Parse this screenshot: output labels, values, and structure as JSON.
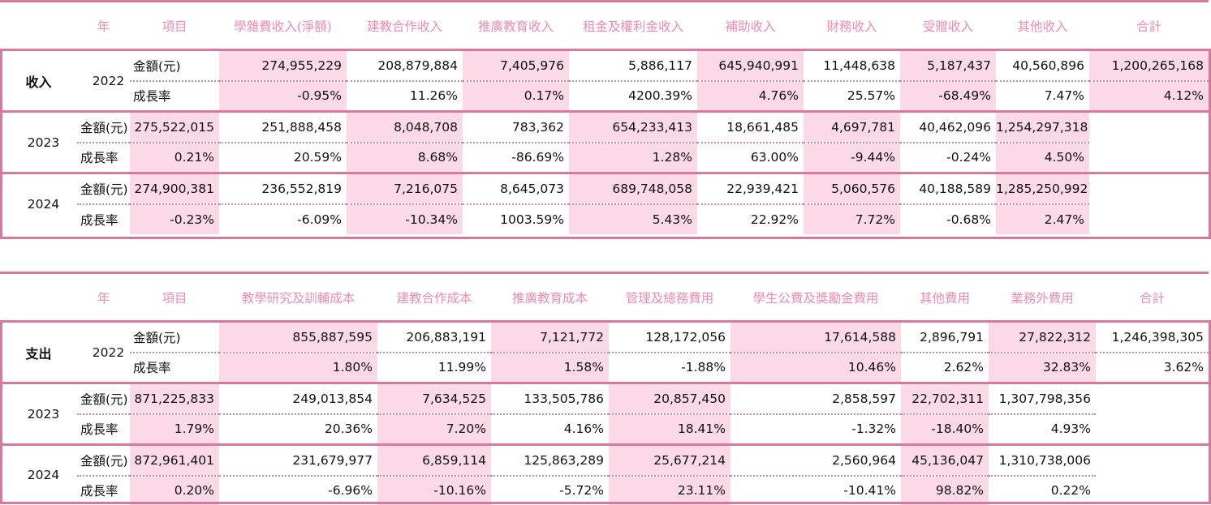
{
  "chart_data": [
    {
      "type": "table",
      "section": "收入",
      "headers": [
        "年",
        "項目",
        "學雜費收入(淨額)",
        "建教合作收入",
        "推廣教育收入",
        "租金及權利金收入",
        "補助收入",
        "財務收入",
        "受贈收入",
        "其他收入",
        "合計"
      ],
      "rows": [
        {
          "year": "2022",
          "amount_label": "金額(元)",
          "amounts": [
            "274,955,229",
            "208,879,884",
            "7,405,976",
            "5,886,117",
            "645,940,991",
            "11,448,638",
            "5,187,437",
            "40,560,896",
            "1,200,265,168"
          ],
          "growth_label": "成長率",
          "growth": [
            "-0.95%",
            "11.26%",
            "0.17%",
            "4200.39%",
            "4.76%",
            "25.57%",
            "-68.49%",
            "7.47%",
            "4.12%"
          ]
        },
        {
          "year": "2023",
          "amount_label": "金額(元)",
          "amounts": [
            "275,522,015",
            "251,888,458",
            "8,048,708",
            "783,362",
            "654,233,413",
            "18,661,485",
            "4,697,781",
            "40,462,096",
            "1,254,297,318"
          ],
          "growth_label": "成長率",
          "growth": [
            "0.21%",
            "20.59%",
            "8.68%",
            "-86.69%",
            "1.28%",
            "63.00%",
            "-9.44%",
            "-0.24%",
            "4.50%"
          ]
        },
        {
          "year": "2024",
          "amount_label": "金額(元)",
          "amounts": [
            "274,900,381",
            "236,552,819",
            "7,216,075",
            "8,645,073",
            "689,748,058",
            "22,939,421",
            "5,060,576",
            "40,188,589",
            "1,285,250,992"
          ],
          "growth_label": "成長率",
          "growth": [
            "-0.23%",
            "-6.09%",
            "-10.34%",
            "1003.59%",
            "5.43%",
            "22.92%",
            "7.72%",
            "-0.68%",
            "2.47%"
          ]
        }
      ]
    },
    {
      "type": "table",
      "section": "支出",
      "headers": [
        "年",
        "項目",
        "教學研究及訓輔成本",
        "建教合作成本",
        "推廣教育成本",
        "管理及總務費用",
        "學生公費及獎勵金費用",
        "其他費用",
        "業務外費用",
        "合計"
      ],
      "rows": [
        {
          "year": "2022",
          "amount_label": "金額(元)",
          "amounts": [
            "855,887,595",
            "206,883,191",
            "7,121,772",
            "128,172,056",
            "17,614,588",
            "2,896,791",
            "27,822,312",
            "1,246,398,305"
          ],
          "growth_label": "成長率",
          "growth": [
            "1.80%",
            "11.99%",
            "1.58%",
            "-1.88%",
            "10.46%",
            "2.62%",
            "32.83%",
            "3.62%"
          ]
        },
        {
          "year": "2023",
          "amount_label": "金額(元)",
          "amounts": [
            "871,225,833",
            "249,013,854",
            "7,634,525",
            "133,505,786",
            "20,857,450",
            "2,858,597",
            "22,702,311",
            "1,307,798,356"
          ],
          "growth_label": "成長率",
          "growth": [
            "1.79%",
            "20.36%",
            "7.20%",
            "4.16%",
            "18.41%",
            "-1.32%",
            "-18.40%",
            "4.93%"
          ]
        },
        {
          "year": "2024",
          "amount_label": "金額(元)",
          "amounts": [
            "872,961,401",
            "231,679,977",
            "6,859,114",
            "125,863,289",
            "25,677,214",
            "2,560,964",
            "45,136,047",
            "1,310,738,006"
          ],
          "growth_label": "成長率",
          "growth": [
            "0.20%",
            "-6.96%",
            "-10.16%",
            "-5.72%",
            "23.11%",
            "-10.41%",
            "98.82%",
            "0.22%"
          ]
        }
      ]
    }
  ],
  "colors": {
    "header_text": "#e98db3",
    "border": "#d9789f",
    "highlight": "#fbd9e6",
    "dotted": "#c88aa4"
  }
}
